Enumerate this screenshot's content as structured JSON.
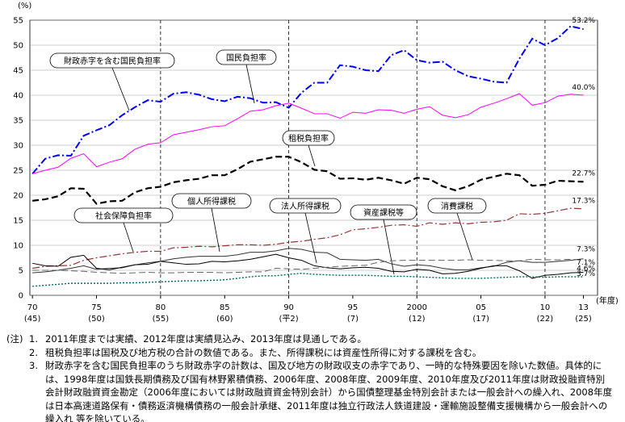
{
  "chart_data": {
    "type": "line",
    "y_unit": "(%)",
    "x_unit": "(年度)",
    "xlim": [
      1969.8,
      2014.1
    ],
    "ylim": [
      0,
      55
    ],
    "yticks": [
      0,
      5,
      10,
      15,
      20,
      25,
      30,
      35,
      40,
      45,
      50,
      55
    ],
    "grid": true,
    "xticks": [
      {
        "value": 1970,
        "label": "70"
      },
      {
        "value": 1975,
        "label": "75"
      },
      {
        "value": 1980,
        "label": "80"
      },
      {
        "value": 1985,
        "label": "85"
      },
      {
        "value": 1990,
        "label": "90"
      },
      {
        "value": 1995,
        "label": "95"
      },
      {
        "value": 2000,
        "label": "2000"
      },
      {
        "value": 2005,
        "label": "05"
      },
      {
        "value": 2010,
        "label": "10"
      },
      {
        "value": 2013,
        "label": "13"
      }
    ],
    "xtick_sublabels": [
      "(45)",
      "(50)",
      "(55)",
      "(60)",
      "(平2)",
      "(7)",
      "(12)",
      "(17)",
      "(22)",
      "(25)"
    ],
    "x": [
      1970,
      1971,
      1972,
      1973,
      1974,
      1975,
      1976,
      1977,
      1978,
      1979,
      1980,
      1981,
      1982,
      1983,
      1984,
      1985,
      1986,
      1987,
      1988,
      1989,
      1990,
      1991,
      1992,
      1993,
      1994,
      1995,
      1996,
      1997,
      1998,
      1999,
      2000,
      2001,
      2002,
      2003,
      2004,
      2005,
      2006,
      2007,
      2008,
      2009,
      2010,
      2011,
      2012,
      2013
    ],
    "series": [
      {
        "name": "財政赤字を含む国民負担率",
        "color": "#0000ff",
        "style": "dashdot",
        "values": [
          24.3,
          27.3,
          28.0,
          27.9,
          31.9,
          33.0,
          34.0,
          36.0,
          37.6,
          39.0,
          38.7,
          40.3,
          40.6,
          40.1,
          39.2,
          38.8,
          39.7,
          39.4,
          38.5,
          38.6,
          37.5,
          40.5,
          42.5,
          42.5,
          46.0,
          45.7,
          45.0,
          44.8,
          48.0,
          49.0,
          47.0,
          46.5,
          46.7,
          45.0,
          43.8,
          43.3,
          42.7,
          42.5,
          47.3,
          51.3,
          50.0,
          51.4,
          53.8,
          53.2
        ],
        "value_labels": [
          null,
          null,
          null,
          null,
          null,
          null,
          null,
          null,
          null,
          null,
          null,
          null,
          null,
          null,
          null,
          null,
          null,
          null,
          null,
          null,
          null,
          null,
          null,
          null,
          null,
          null,
          null,
          null,
          null,
          null,
          null,
          null,
          null,
          null,
          null,
          null,
          null,
          null,
          null,
          null,
          null,
          null,
          null,
          "53.2%"
        ]
      },
      {
        "name": "国民負担率",
        "color": "#ff00ff",
        "style": "solid",
        "values": [
          24.3,
          25.0,
          25.6,
          27.4,
          28.3,
          25.7,
          26.6,
          27.3,
          29.2,
          30.2,
          30.5,
          32.1,
          32.6,
          33.1,
          33.7,
          33.9,
          35.3,
          36.8,
          37.1,
          37.9,
          38.4,
          37.4,
          36.3,
          36.3,
          35.4,
          36.6,
          36.4,
          37.1,
          37.0,
          36.4,
          37.2,
          37.7,
          36.0,
          35.5,
          36.1,
          37.6,
          38.4,
          39.3,
          40.3,
          38.0,
          38.5,
          39.8,
          40.2,
          40.0
        ],
        "value_labels": [
          null,
          null,
          null,
          null,
          null,
          null,
          null,
          null,
          null,
          null,
          null,
          null,
          null,
          null,
          null,
          null,
          null,
          null,
          null,
          null,
          null,
          null,
          null,
          null,
          null,
          null,
          null,
          null,
          null,
          null,
          null,
          null,
          null,
          null,
          null,
          null,
          null,
          null,
          null,
          null,
          null,
          null,
          null,
          "40.0%"
        ]
      },
      {
        "name": "租税負担率",
        "color": "#000000",
        "style": "dashed",
        "values": [
          18.9,
          19.2,
          19.8,
          21.4,
          21.3,
          18.3,
          18.8,
          18.9,
          20.6,
          21.4,
          21.7,
          22.6,
          23.0,
          23.3,
          24.0,
          24.0,
          25.2,
          26.7,
          27.2,
          27.7,
          27.7,
          26.6,
          25.1,
          24.8,
          23.3,
          23.4,
          23.1,
          23.5,
          23.0,
          22.3,
          23.5,
          23.2,
          21.8,
          21.0,
          21.8,
          23.1,
          23.7,
          24.3,
          24.0,
          21.9,
          22.1,
          22.9,
          22.8,
          22.7
        ],
        "value_labels": [
          null,
          null,
          null,
          null,
          null,
          null,
          null,
          null,
          null,
          null,
          null,
          null,
          null,
          null,
          null,
          null,
          null,
          null,
          null,
          null,
          null,
          null,
          null,
          null,
          null,
          null,
          null,
          null,
          null,
          null,
          null,
          null,
          null,
          null,
          null,
          null,
          null,
          null,
          null,
          null,
          null,
          null,
          null,
          "22.7%"
        ]
      },
      {
        "name": "社会保障負担率",
        "color": "#993333",
        "style": "dashdot",
        "values": [
          5.4,
          5.8,
          5.9,
          6.0,
          7.0,
          7.5,
          7.9,
          8.3,
          8.6,
          8.8,
          8.8,
          9.5,
          9.6,
          9.8,
          9.7,
          9.9,
          10.1,
          10.1,
          10.0,
          10.2,
          10.6,
          10.8,
          11.2,
          11.5,
          12.1,
          13.1,
          13.3,
          13.6,
          14.0,
          14.1,
          13.8,
          14.5,
          14.2,
          14.5,
          14.3,
          14.6,
          14.7,
          15.0,
          16.3,
          16.2,
          16.4,
          16.9,
          17.4,
          17.3
        ],
        "value_labels": [
          null,
          null,
          null,
          null,
          null,
          null,
          null,
          null,
          null,
          null,
          null,
          null,
          null,
          null,
          null,
          null,
          null,
          null,
          null,
          null,
          null,
          null,
          null,
          null,
          null,
          null,
          null,
          null,
          null,
          null,
          null,
          null,
          null,
          null,
          null,
          null,
          null,
          null,
          null,
          null,
          null,
          null,
          null,
          "17.3%"
        ]
      },
      {
        "name": "個人所得課税",
        "color": "#333333",
        "style": "solid",
        "values": [
          4.5,
          4.7,
          5.0,
          5.4,
          5.9,
          5.2,
          5.4,
          5.5,
          6.1,
          6.5,
          6.8,
          7.3,
          7.6,
          7.8,
          7.8,
          7.8,
          8.1,
          8.6,
          8.6,
          8.9,
          9.4,
          9.2,
          8.6,
          8.5,
          7.2,
          7.1,
          7.0,
          7.2,
          6.3,
          5.8,
          6.1,
          5.9,
          5.4,
          5.1,
          5.1,
          5.5,
          5.8,
          6.6,
          6.9,
          6.6,
          6.6,
          6.8,
          7.0,
          7.3
        ],
        "value_labels": [
          null,
          null,
          null,
          null,
          null,
          null,
          null,
          null,
          null,
          null,
          null,
          null,
          null,
          null,
          null,
          null,
          null,
          null,
          null,
          null,
          null,
          null,
          null,
          null,
          null,
          null,
          null,
          null,
          null,
          null,
          null,
          null,
          null,
          null,
          null,
          null,
          null,
          null,
          null,
          null,
          null,
          null,
          null,
          "7.3%"
        ]
      },
      {
        "name": "法人所得課税",
        "color": "#000000",
        "style": "solid",
        "values": [
          6.4,
          5.9,
          5.8,
          7.6,
          8.0,
          5.4,
          5.1,
          5.6,
          6.1,
          6.2,
          6.8,
          6.5,
          6.2,
          6.3,
          6.8,
          6.7,
          6.9,
          7.2,
          7.7,
          8.2,
          7.5,
          7.0,
          5.9,
          5.5,
          5.3,
          5.5,
          5.6,
          5.4,
          4.8,
          4.7,
          5.2,
          5.0,
          4.3,
          4.4,
          4.8,
          5.4,
          5.9,
          5.9,
          4.9,
          3.4,
          4.0,
          4.2,
          4.5,
          4.6
        ],
        "value_labels": [
          null,
          null,
          null,
          null,
          null,
          null,
          null,
          null,
          null,
          null,
          null,
          null,
          null,
          null,
          null,
          null,
          null,
          null,
          null,
          null,
          null,
          null,
          null,
          null,
          null,
          null,
          null,
          null,
          null,
          null,
          null,
          null,
          null,
          null,
          null,
          null,
          null,
          null,
          null,
          null,
          null,
          null,
          null,
          "4.6%"
        ]
      },
      {
        "name": "資産課税等",
        "color": "#006666",
        "style": "dotted",
        "values": [
          1.8,
          2.0,
          2.2,
          2.4,
          2.4,
          2.4,
          2.4,
          2.5,
          2.5,
          2.6,
          2.7,
          2.8,
          2.9,
          2.9,
          3.0,
          3.1,
          3.4,
          3.7,
          3.9,
          3.9,
          4.2,
          4.4,
          4.2,
          4.1,
          4.0,
          4.0,
          4.0,
          3.9,
          3.8,
          3.8,
          3.7,
          3.6,
          3.5,
          3.4,
          3.4,
          3.4,
          3.5,
          3.6,
          3.7,
          3.7,
          3.6,
          3.7,
          3.7,
          3.7
        ],
        "value_labels": [
          null,
          null,
          null,
          null,
          null,
          null,
          null,
          null,
          null,
          null,
          null,
          null,
          null,
          null,
          null,
          null,
          null,
          null,
          null,
          null,
          null,
          null,
          null,
          null,
          null,
          null,
          null,
          null,
          null,
          null,
          null,
          null,
          null,
          null,
          null,
          null,
          null,
          null,
          null,
          null,
          null,
          null,
          null,
          "3.7%"
        ]
      },
      {
        "name": "消費課税",
        "color": "#666666",
        "style": "dashed",
        "values": [
          5.0,
          5.0,
          5.0,
          4.9,
          4.8,
          4.6,
          4.5,
          4.4,
          4.5,
          4.6,
          4.5,
          4.5,
          4.6,
          4.6,
          4.6,
          4.5,
          4.6,
          4.7,
          4.7,
          5.4,
          5.3,
          5.2,
          5.4,
          5.6,
          5.8,
          5.9,
          6.0,
          6.6,
          6.9,
          7.0,
          7.0,
          7.0,
          7.0,
          7.0,
          7.1,
          7.0,
          7.0,
          6.9,
          6.9,
          7.2,
          7.1,
          7.1,
          7.2,
          7.1
        ],
        "value_labels": [
          null,
          null,
          null,
          null,
          null,
          null,
          null,
          null,
          null,
          null,
          null,
          null,
          null,
          null,
          null,
          null,
          null,
          null,
          null,
          null,
          null,
          null,
          null,
          null,
          null,
          null,
          null,
          null,
          null,
          null,
          null,
          null,
          null,
          null,
          null,
          null,
          null,
          null,
          null,
          null,
          null,
          null,
          null,
          "7.1%"
        ]
      }
    ]
  },
  "notes_title": "(注)",
  "notes": [
    {
      "marker": "1.",
      "text": "2011年度までは実績、2012年度は実績見込み、2013年度は見通しである。"
    },
    {
      "marker": "2.",
      "text": "租税負担率は国税及び地方税の合計の数値である。また、所得課税には資産性所得に対する課税を含む。"
    },
    {
      "marker": "3.",
      "text": "財政赤字を含む国民負担率のうち財政赤字の計数は、国及び地方の財政収支の赤字であり、一時的な特殊要因を除いた数値。具体的には、1998年度は国鉄長期債務及び国有林野累積債務、2006年度、2008年度、2009年度、2010年度及び2011年度は財政投融資特別会計財政融資資金勘定（2006年度においては財政融資資金特別会計）から国債整理基金特別会計または一般会計への繰入れ、2008年度は日本高速道路保有・債務返済機構債務の一般会計承継、2011年度は独立行政法人鉄道建設・運輸施設整備支援機構から一般会計への繰入れ 等を除いている。"
    }
  ]
}
